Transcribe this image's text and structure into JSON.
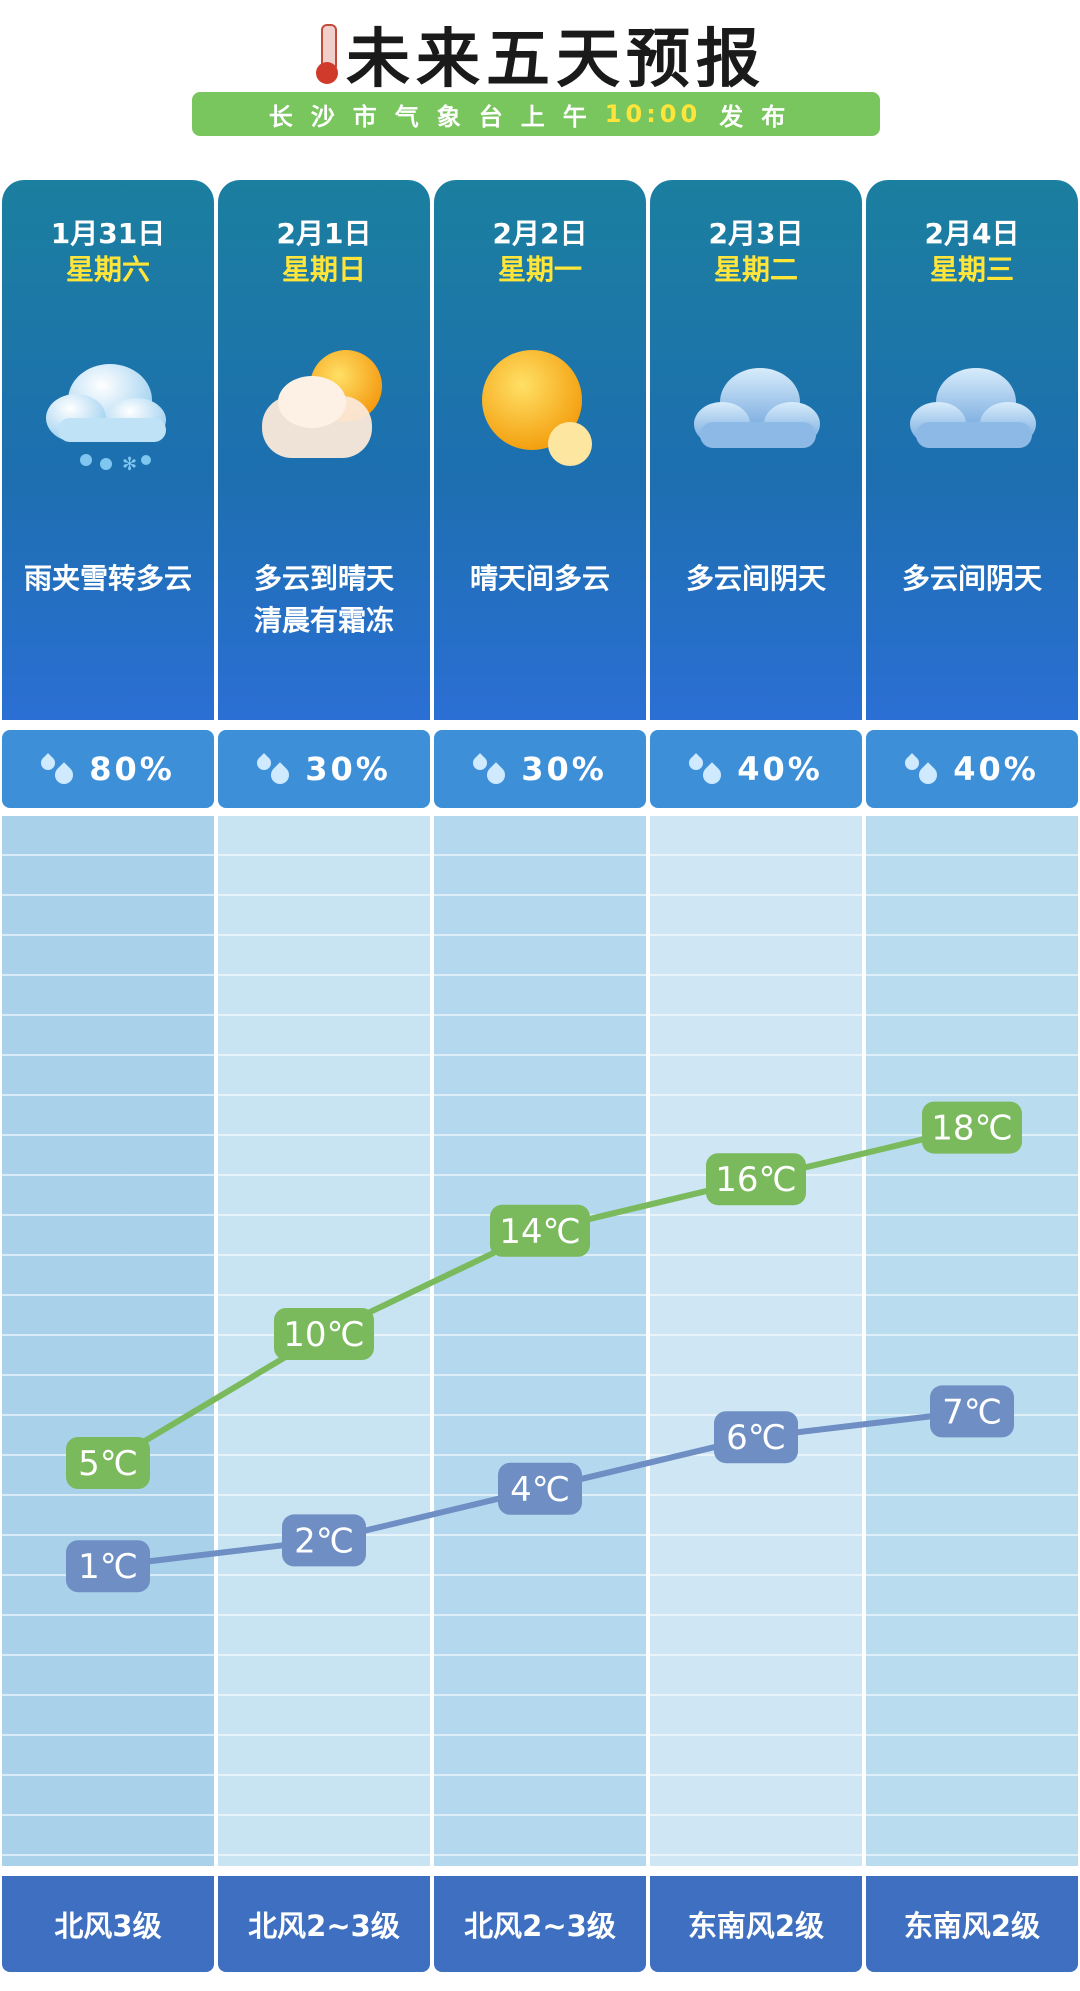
{
  "header": {
    "title": "未来五天预报",
    "publisher": "长沙市气象台上午",
    "time": "10:00",
    "release": "发布",
    "icon": "thermometer-icon"
  },
  "colors": {
    "high_line": "#7ab95c",
    "low_line": "#6e8ec4",
    "card_top": "#1b7f9f",
    "card_bottom": "#2b6fd4",
    "precip_bar": "#3d8fd8",
    "wind_bar": "#3f6fc0",
    "subbar": "#79c55e",
    "accent_yellow": "#ffe53a"
  },
  "days": [
    {
      "date": "1月31日",
      "weekday": "星期六",
      "icon": "rain-snow-cloud-icon",
      "weather_line1": "雨夹雪转多云",
      "weather_line2": "",
      "precip": "80%",
      "wind": "北风3级"
    },
    {
      "date": "2月1日",
      "weekday": "星期日",
      "icon": "cloud-sun-icon",
      "weather_line1": "多云到晴天",
      "weather_line2": "清晨有霜冻",
      "precip": "30%",
      "wind": "北风2~3级"
    },
    {
      "date": "2月2日",
      "weekday": "星期一",
      "icon": "sun-icon",
      "weather_line1": "晴天间多云",
      "weather_line2": "",
      "precip": "30%",
      "wind": "北风2~3级"
    },
    {
      "date": "2月3日",
      "weekday": "星期二",
      "icon": "overcast-cloud-icon",
      "weather_line1": "多云间阴天",
      "weather_line2": "",
      "precip": "40%",
      "wind": "东南风2级"
    },
    {
      "date": "2月4日",
      "weekday": "星期三",
      "icon": "overcast-cloud-icon",
      "weather_line1": "多云间阴天",
      "weather_line2": "",
      "precip": "40%",
      "wind": "东南风2级"
    }
  ],
  "chart_data": {
    "type": "line",
    "categories": [
      "1月31日",
      "2月1日",
      "2月2日",
      "2月3日",
      "2月4日"
    ],
    "series": [
      {
        "values": [
          5,
          10,
          14,
          16,
          18
        ],
        "labels": [
          "5℃",
          "10℃",
          "14℃",
          "16℃",
          "18℃"
        ]
      },
      {
        "values": [
          1,
          2,
          4,
          6,
          7
        ],
        "labels": [
          "1℃",
          "2℃",
          "4℃",
          "6℃",
          "7℃"
        ]
      }
    ],
    "unit": "℃",
    "grid": true
  }
}
